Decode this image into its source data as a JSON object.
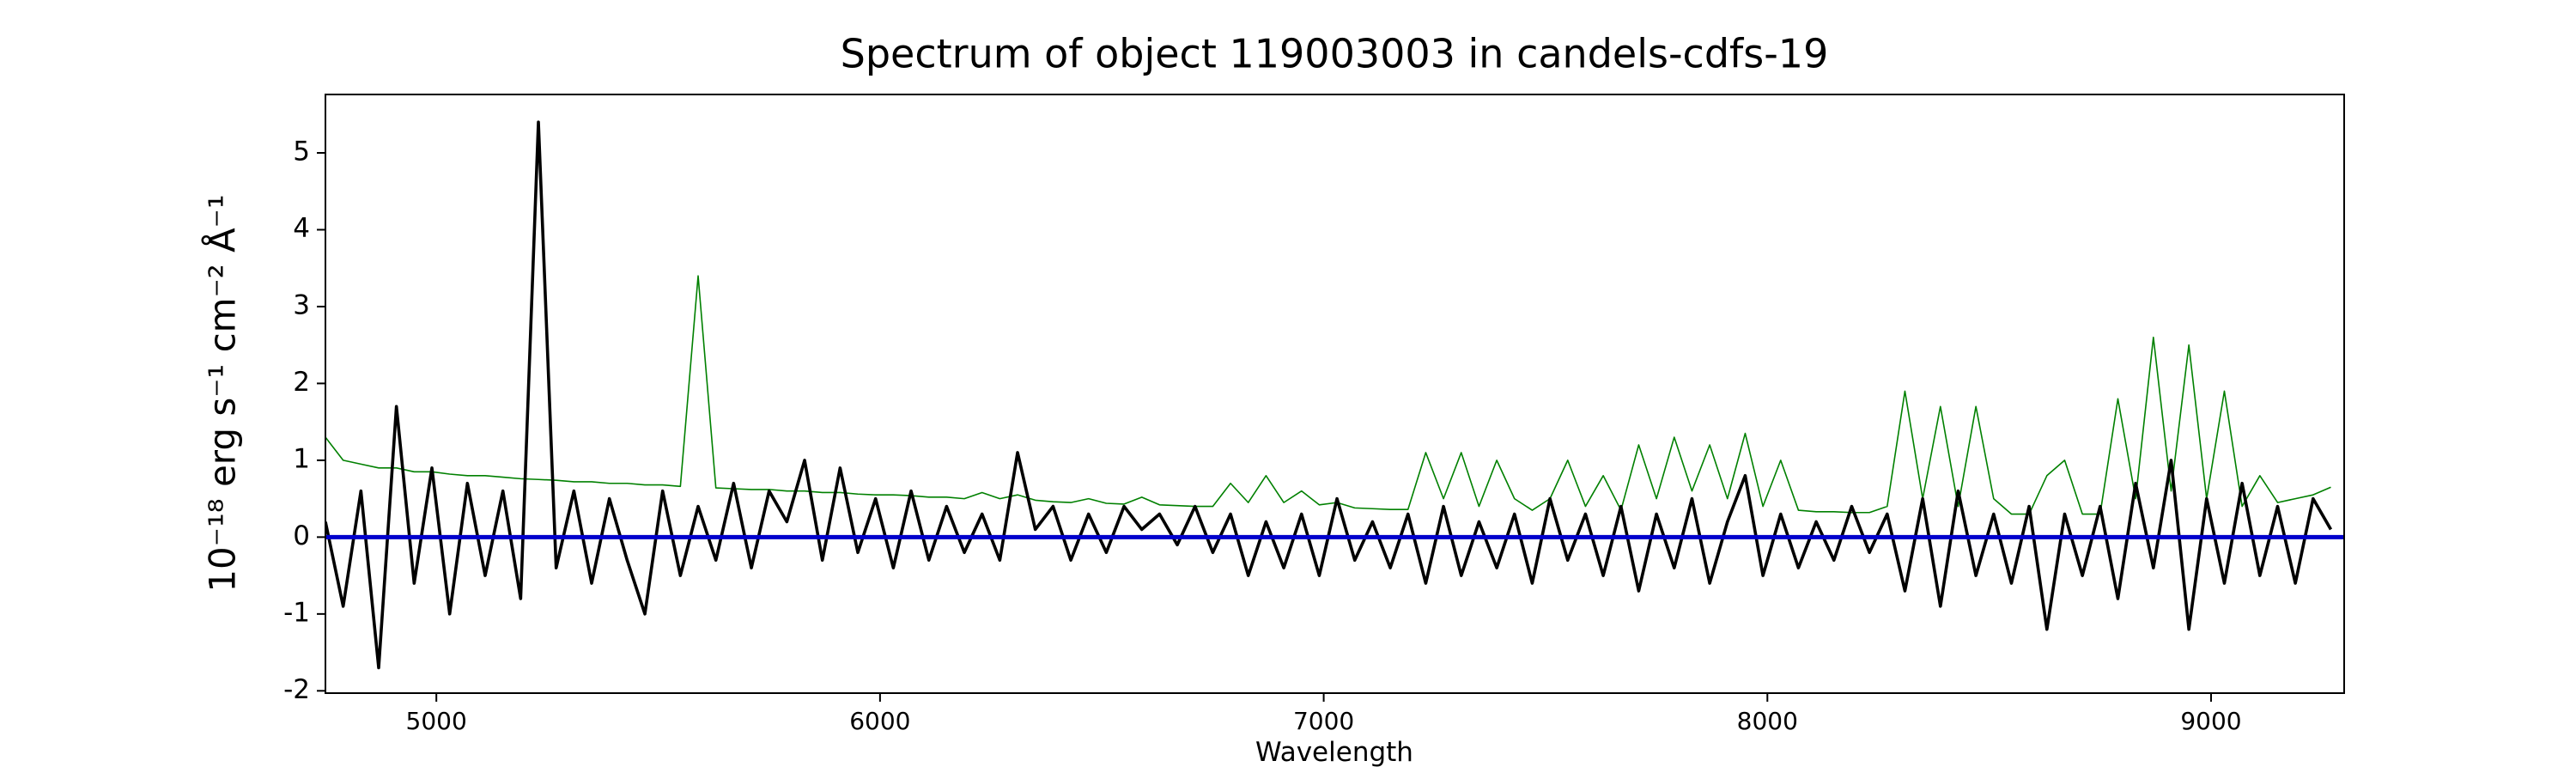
{
  "chart_data": {
    "type": "line",
    "title": "Spectrum of object 119003003 in candels-cdfs-19",
    "x_label": "Wavelength",
    "y_label": "10⁻¹⁸ erg s⁻¹ cm⁻² Å⁻¹",
    "xlim": [
      4750,
      9300
    ],
    "ylim": [
      -2.03,
      5.76
    ],
    "xticks": [
      5000,
      6000,
      7000,
      8000,
      9000
    ],
    "yticks": [
      -2,
      -1,
      0,
      1,
      2,
      3,
      4,
      5
    ],
    "grid": false,
    "series": [
      {
        "color": "#008000",
        "x": [
          4750,
          4790,
          4830,
          4870,
          4910,
          4950,
          4990,
          5030,
          5070,
          5110,
          5150,
          5190,
          5230,
          5270,
          5310,
          5350,
          5390,
          5430,
          5470,
          5510,
          5550,
          5590,
          5630,
          5670,
          5710,
          5750,
          5790,
          5830,
          5870,
          5910,
          5950,
          5990,
          6030,
          6070,
          6110,
          6150,
          6190,
          6230,
          6270,
          6310,
          6350,
          6390,
          6430,
          6470,
          6510,
          6550,
          6590,
          6630,
          6670,
          6710,
          6750,
          6790,
          6830,
          6870,
          6910,
          6950,
          6990,
          7030,
          7070,
          7110,
          7150,
          7190,
          7230,
          7270,
          7310,
          7350,
          7390,
          7430,
          7470,
          7510,
          7550,
          7590,
          7630,
          7670,
          7710,
          7750,
          7790,
          7830,
          7870,
          7910,
          7950,
          7990,
          8030,
          8070,
          8110,
          8150,
          8190,
          8230,
          8270,
          8310,
          8350,
          8390,
          8430,
          8470,
          8510,
          8550,
          8590,
          8630,
          8670,
          8710,
          8750,
          8790,
          8830,
          8870,
          8910,
          8950,
          8990,
          9030,
          9070,
          9110,
          9150,
          9190,
          9230,
          9270
        ],
        "values": [
          1.3,
          1.0,
          0.95,
          0.9,
          0.9,
          0.85,
          0.85,
          0.82,
          0.8,
          0.8,
          0.78,
          0.76,
          0.75,
          0.74,
          0.72,
          0.72,
          0.7,
          0.7,
          0.68,
          0.68,
          0.66,
          3.4,
          0.64,
          0.63,
          0.62,
          0.62,
          0.6,
          0.6,
          0.58,
          0.58,
          0.56,
          0.55,
          0.55,
          0.54,
          0.52,
          0.52,
          0.5,
          0.58,
          0.5,
          0.55,
          0.48,
          0.46,
          0.45,
          0.5,
          0.44,
          0.43,
          0.52,
          0.42,
          0.41,
          0.4,
          0.4,
          0.7,
          0.45,
          0.8,
          0.45,
          0.6,
          0.42,
          0.45,
          0.38,
          0.37,
          0.36,
          0.36,
          1.1,
          0.5,
          1.1,
          0.4,
          1.0,
          0.5,
          0.35,
          0.5,
          1.0,
          0.4,
          0.8,
          0.35,
          1.2,
          0.5,
          1.3,
          0.6,
          1.2,
          0.5,
          1.35,
          0.4,
          1.0,
          0.35,
          0.33,
          0.33,
          0.32,
          0.32,
          0.4,
          1.9,
          0.5,
          1.7,
          0.4,
          1.7,
          0.5,
          0.3,
          0.3,
          0.8,
          1.0,
          0.3,
          0.3,
          1.8,
          0.5,
          2.6,
          0.6,
          2.5,
          0.5,
          1.9,
          0.4,
          0.8,
          0.45,
          0.5,
          0.55,
          0.65
        ]
      },
      {
        "color": "#000000",
        "x": [
          4750,
          4790,
          4830,
          4870,
          4910,
          4950,
          4990,
          5030,
          5070,
          5110,
          5150,
          5190,
          5230,
          5270,
          5310,
          5350,
          5390,
          5430,
          5470,
          5510,
          5550,
          5590,
          5630,
          5670,
          5710,
          5750,
          5790,
          5830,
          5870,
          5910,
          5950,
          5990,
          6030,
          6070,
          6110,
          6150,
          6190,
          6230,
          6270,
          6310,
          6350,
          6390,
          6430,
          6470,
          6510,
          6550,
          6590,
          6630,
          6670,
          6710,
          6750,
          6790,
          6830,
          6870,
          6910,
          6950,
          6990,
          7030,
          7070,
          7110,
          7150,
          7190,
          7230,
          7270,
          7310,
          7350,
          7390,
          7430,
          7470,
          7510,
          7550,
          7590,
          7630,
          7670,
          7710,
          7750,
          7790,
          7830,
          7870,
          7910,
          7950,
          7990,
          8030,
          8070,
          8110,
          8150,
          8190,
          8230,
          8270,
          8310,
          8350,
          8390,
          8430,
          8470,
          8510,
          8550,
          8590,
          8630,
          8670,
          8710,
          8750,
          8790,
          8830,
          8870,
          8910,
          8950,
          8990,
          9030,
          9070,
          9110,
          9150,
          9190,
          9230,
          9270
        ],
        "values": [
          0.2,
          -0.9,
          0.6,
          -1.7,
          1.7,
          -0.6,
          0.9,
          -1.0,
          0.7,
          -0.5,
          0.6,
          -0.8,
          5.4,
          -0.4,
          0.6,
          -0.6,
          0.5,
          -0.3,
          -1.0,
          0.6,
          -0.5,
          0.4,
          -0.3,
          0.7,
          -0.4,
          0.6,
          0.2,
          1.0,
          -0.3,
          0.9,
          -0.2,
          0.5,
          -0.4,
          0.6,
          -0.3,
          0.4,
          -0.2,
          0.3,
          -0.3,
          1.1,
          0.1,
          0.4,
          -0.3,
          0.3,
          -0.2,
          0.4,
          0.1,
          0.3,
          -0.1,
          0.4,
          -0.2,
          0.3,
          -0.5,
          0.2,
          -0.4,
          0.3,
          -0.5,
          0.5,
          -0.3,
          0.2,
          -0.4,
          0.3,
          -0.6,
          0.4,
          -0.5,
          0.2,
          -0.4,
          0.3,
          -0.6,
          0.5,
          -0.3,
          0.3,
          -0.5,
          0.4,
          -0.7,
          0.3,
          -0.4,
          0.5,
          -0.6,
          0.2,
          0.8,
          -0.5,
          0.3,
          -0.4,
          0.2,
          -0.3,
          0.4,
          -0.2,
          0.3,
          -0.7,
          0.5,
          -0.9,
          0.6,
          -0.5,
          0.3,
          -0.6,
          0.4,
          -1.2,
          0.3,
          -0.5,
          0.4,
          -0.8,
          0.7,
          -0.4,
          1.0,
          -1.2,
          0.5,
          -0.6,
          0.7,
          -0.5,
          0.4,
          -0.6,
          0.5,
          0.1
        ]
      },
      {
        "color": "#0000cc",
        "x": [
          4750,
          9300
        ],
        "values": [
          0,
          0
        ]
      }
    ]
  }
}
